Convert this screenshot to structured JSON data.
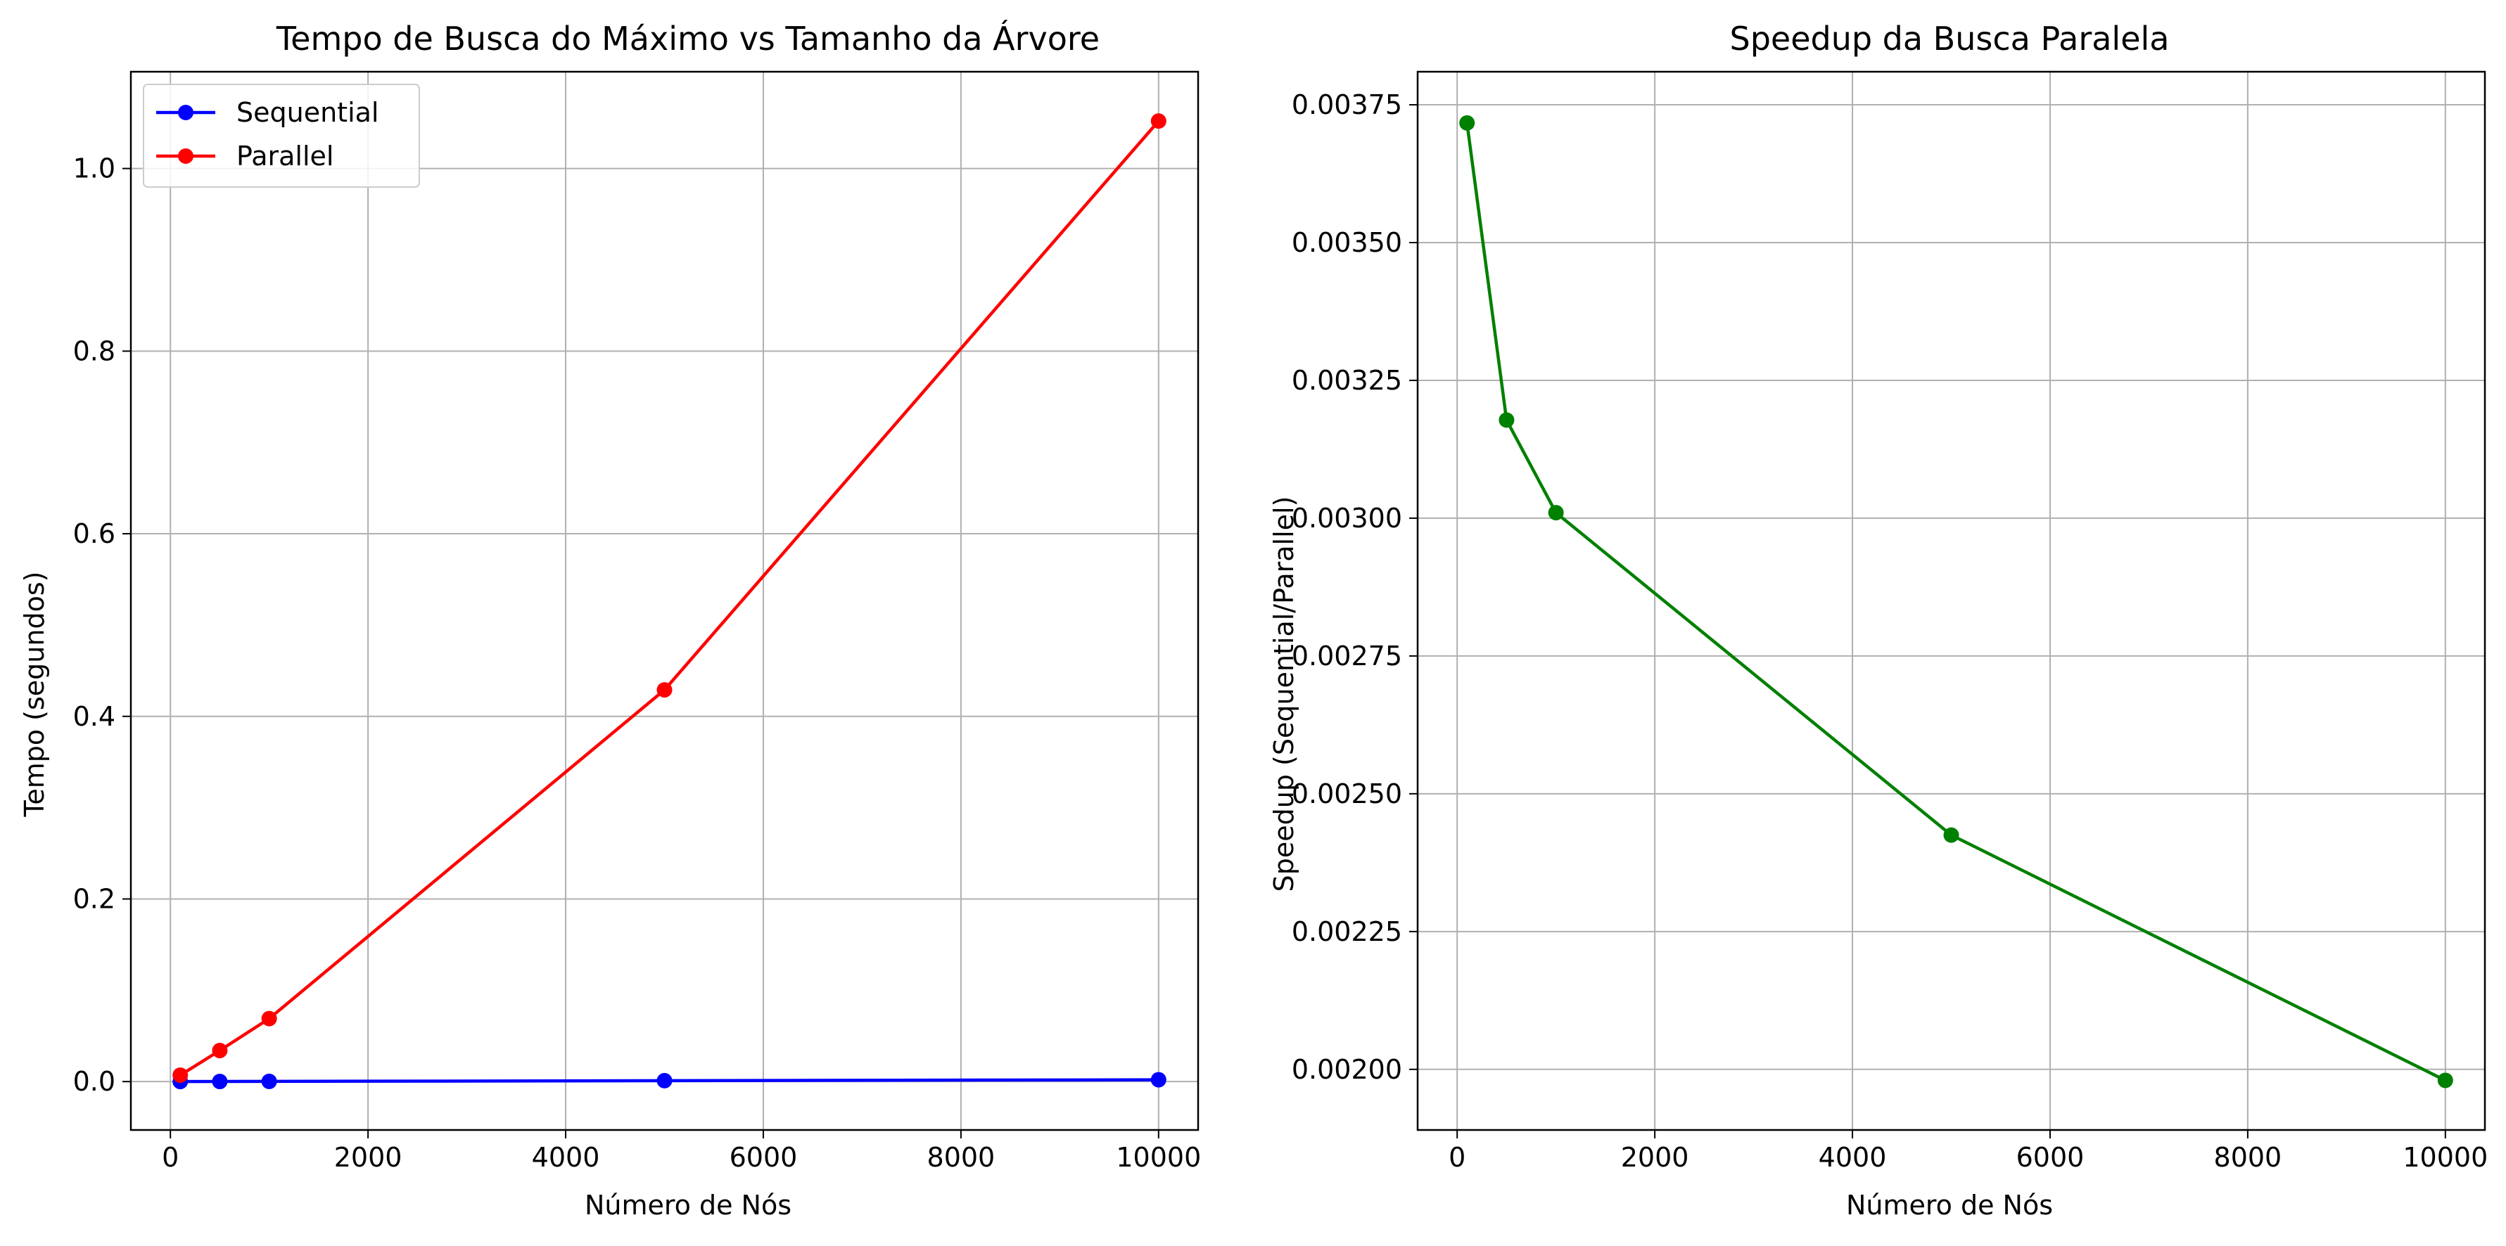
{
  "chart_data": [
    {
      "type": "line",
      "title": "Tempo de Busca do Máximo vs Tamanho da Árvore",
      "xlabel": "Número de Nós",
      "ylabel": "Tempo (segundos)",
      "xlim": [
        -400,
        10400
      ],
      "ylim": [
        -0.053,
        1.106
      ],
      "xticks": [
        0,
        2000,
        4000,
        6000,
        8000,
        10000
      ],
      "xtick_labels": [
        "0",
        "2000",
        "4000",
        "6000",
        "8000",
        "10000"
      ],
      "yticks": [
        0.0,
        0.2,
        0.4,
        0.6,
        0.8,
        1.0
      ],
      "ytick_labels": [
        "0.0",
        "0.2",
        "0.4",
        "0.6",
        "0.8",
        "1.0"
      ],
      "grid": true,
      "legend": "upper-left",
      "x": [
        100,
        500,
        1000,
        5000,
        10000
      ],
      "series": [
        {
          "name": "Sequential",
          "color": "#0000ff",
          "values": [
            3e-05,
            0.0001,
            0.0002,
            0.001,
            0.002
          ]
        },
        {
          "name": "Parallel",
          "color": "#ff0000",
          "values": [
            0.007,
            0.034,
            0.069,
            0.429,
            1.052
          ]
        }
      ]
    },
    {
      "type": "line",
      "title": "Speedup da Busca Paralela",
      "xlabel": "Número de Nós",
      "ylabel": "Speedup (Sequential/Parallel)",
      "xlim": [
        -400,
        10400
      ],
      "ylim": [
        0.00189,
        0.00381
      ],
      "xticks": [
        0,
        2000,
        4000,
        6000,
        8000,
        10000
      ],
      "xtick_labels": [
        "0",
        "2000",
        "4000",
        "6000",
        "8000",
        "10000"
      ],
      "yticks": [
        0.002,
        0.00225,
        0.0025,
        0.00275,
        0.003,
        0.00325,
        0.0035,
        0.00375
      ],
      "ytick_labels": [
        "0.00200",
        "0.00225",
        "0.00250",
        "0.00275",
        "0.00300",
        "0.00325",
        "0.00350",
        "0.00375"
      ],
      "grid": true,
      "legend": "none",
      "x": [
        100,
        500,
        1000,
        5000,
        10000
      ],
      "series": [
        {
          "color": "#008000",
          "values": [
            0.003717,
            0.003178,
            0.00301,
            0.002425,
            0.00198
          ]
        }
      ]
    }
  ]
}
